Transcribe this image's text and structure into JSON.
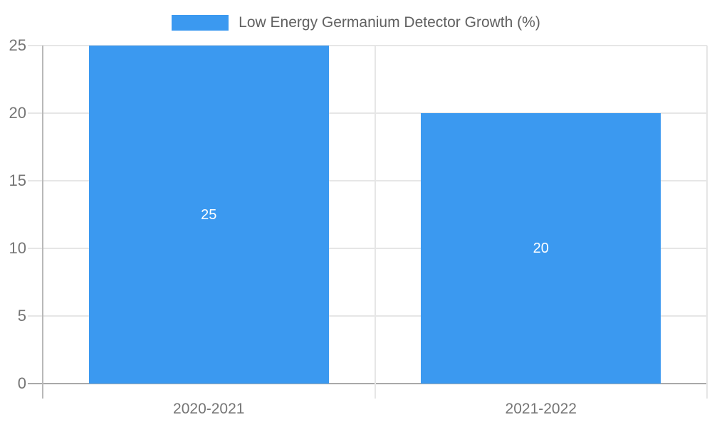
{
  "legend": {
    "label": "Low Energy Germanium Detector Growth (%)"
  },
  "colors": {
    "bar": "#3B99F0",
    "grid": "#E6E6E6",
    "baseline": "#A9A9A9",
    "axis": "#B8B8B8",
    "tick_label": "#757575",
    "legend_text": "#616161",
    "bar_label": "#FFFFFF"
  },
  "chart_data": {
    "type": "bar",
    "title": "Low Energy Germanium Detector Growth (%)",
    "categories": [
      "2020-2021",
      "2021-2022"
    ],
    "values": [
      25,
      20
    ],
    "bar_labels": [
      "25",
      "20"
    ],
    "y_ticks": [
      0,
      5,
      10,
      15,
      20,
      25
    ],
    "ylim": [
      0,
      25
    ],
    "xlabel": "",
    "ylabel": "",
    "legend_entries": [
      "Low Energy Germanium Detector Growth (%)"
    ],
    "legend_position": "top",
    "grid": true,
    "bar_label_position": "center-inside"
  }
}
